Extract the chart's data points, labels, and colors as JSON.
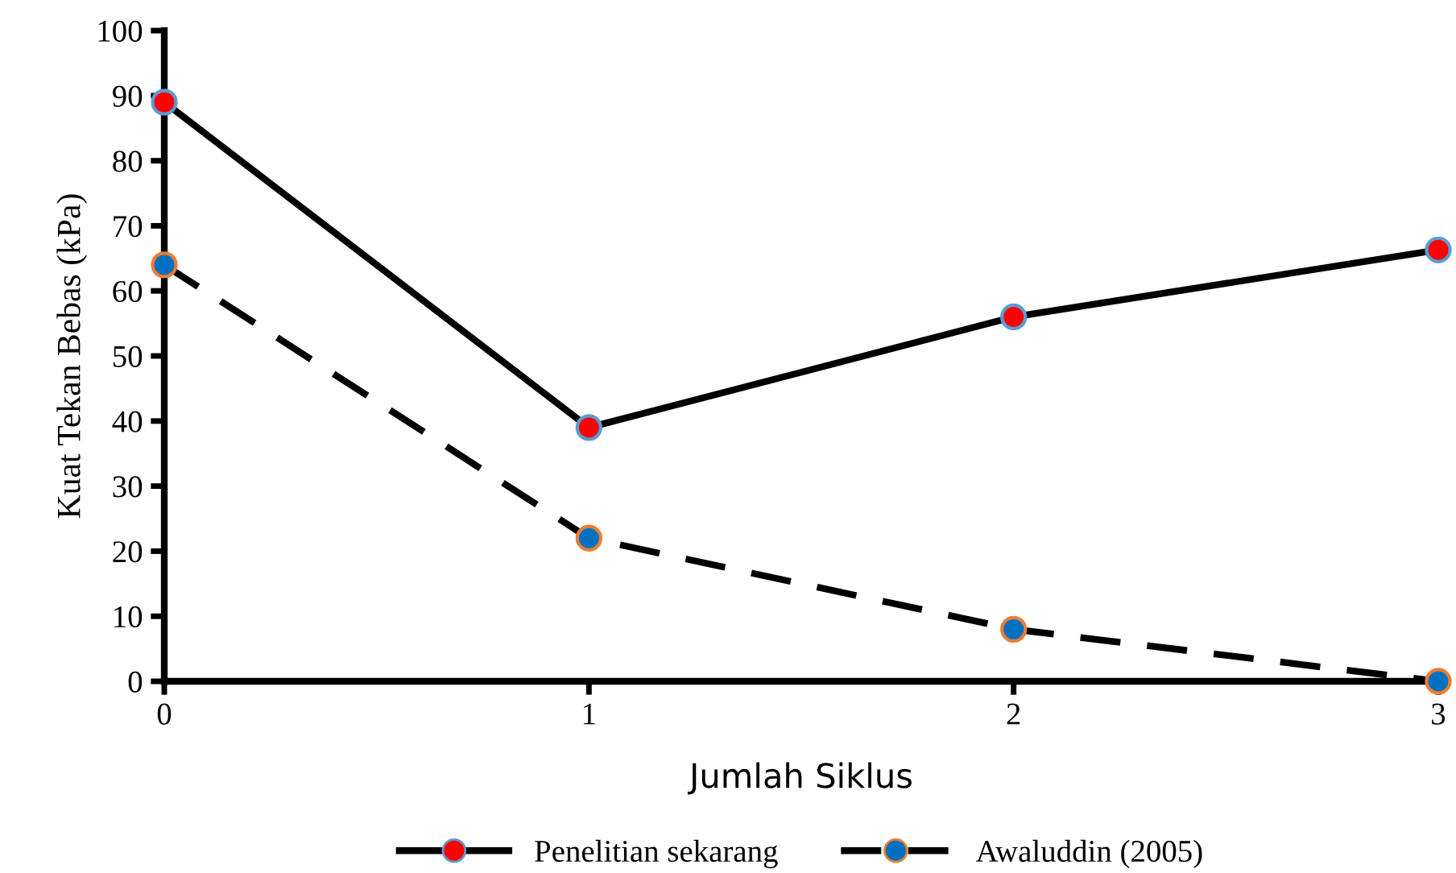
{
  "chart_data": {
    "type": "line",
    "xlabel": "Jumlah Siklus",
    "ylabel": "Kuat Tekan Bebas (kPa)",
    "x": [
      0,
      1,
      2,
      3
    ],
    "xlim": [
      0,
      3
    ],
    "xticks": [
      0,
      1,
      2,
      3
    ],
    "ylim": [
      0,
      100
    ],
    "yticks": [
      0,
      10,
      20,
      30,
      40,
      50,
      60,
      70,
      80,
      90,
      100
    ],
    "grid": false,
    "legend": "bottom",
    "marker": "circle",
    "series": [
      {
        "name": "Penelitian sekarang",
        "color": "#000000",
        "colors": [
          "#ff0000",
          "#ff0000",
          "#ff0000",
          "#ff0000"
        ],
        "line_style": "solid",
        "values": [
          89,
          39,
          56,
          66.3
        ]
      },
      {
        "name": "Awaluddin (2005)",
        "color": "#000000",
        "colors": [
          "#0070c0",
          "#0070c0",
          "#0070c0",
          "#0070c0"
        ],
        "line_style": "dashed",
        "values": [
          64,
          22,
          8,
          0
        ]
      }
    ]
  }
}
